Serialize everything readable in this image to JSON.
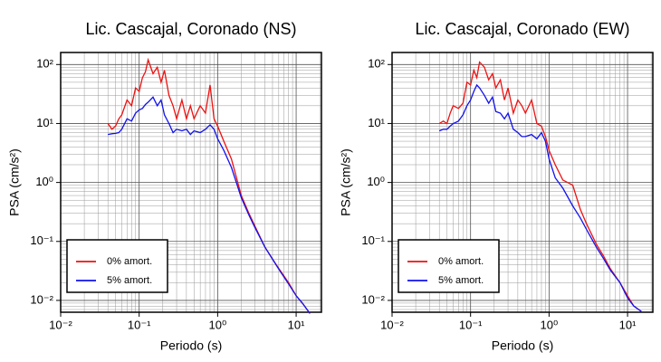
{
  "chart_data": [
    {
      "type": "line",
      "title": "Lic. Cascajal, Coronado (NS)",
      "xlabel": "Periodo (s)",
      "ylabel": "PSA (cm/s²)",
      "xscale": "log",
      "yscale": "log",
      "grid": true,
      "minor_grid": true,
      "legend": "lower left",
      "xlim": [
        0.01,
        21
      ],
      "ylim": [
        0.0063,
        160
      ],
      "xticks": [
        {
          "value": 0.01,
          "label": "10⁻²"
        },
        {
          "value": 0.1,
          "label": "10⁻¹"
        },
        {
          "value": 1,
          "label": "10⁰"
        },
        {
          "value": 10,
          "label": "10¹"
        }
      ],
      "yticks": [
        {
          "value": 0.01,
          "label": "10⁻²"
        },
        {
          "value": 0.1,
          "label": "10⁻¹"
        },
        {
          "value": 1,
          "label": "10⁰"
        },
        {
          "value": 10,
          "label": "10¹"
        },
        {
          "value": 100,
          "label": "10²"
        }
      ],
      "x": [
        0.04,
        0.045,
        0.05,
        0.055,
        0.06,
        0.07,
        0.08,
        0.09,
        0.1,
        0.11,
        0.12,
        0.13,
        0.15,
        0.17,
        0.19,
        0.21,
        0.24,
        0.27,
        0.3,
        0.35,
        0.4,
        0.45,
        0.5,
        0.6,
        0.7,
        0.8,
        0.9,
        1.0,
        1.2,
        1.5,
        2,
        2.5,
        3,
        4,
        5,
        6,
        8,
        10,
        12,
        15
      ],
      "series": [
        {
          "name": "0% amort.",
          "color": "#ee1111",
          "values": [
            10,
            8,
            9,
            12,
            14,
            25,
            20,
            40,
            35,
            60,
            75,
            120,
            70,
            90,
            50,
            80,
            30,
            20,
            12,
            25,
            12,
            20,
            12,
            20,
            15,
            45,
            12,
            9,
            5,
            2.5,
            0.6,
            0.3,
            0.18,
            0.08,
            0.05,
            0.035,
            0.02,
            0.012,
            0.009,
            0.006
          ]
        },
        {
          "name": "5% amort.",
          "color": "#1111ee",
          "values": [
            6.5,
            6.7,
            6.8,
            7,
            8,
            12,
            11,
            15,
            17,
            18,
            21,
            23,
            28,
            20,
            25,
            14,
            10,
            7,
            8,
            7.5,
            8,
            6.5,
            7.5,
            7,
            8,
            9.5,
            8,
            5.5,
            3.5,
            1.8,
            0.55,
            0.28,
            0.17,
            0.08,
            0.05,
            0.034,
            0.019,
            0.012,
            0.009,
            0.006
          ]
        }
      ]
    },
    {
      "type": "line",
      "title": "Lic. Cascajal, Coronado (EW)",
      "xlabel": "Periodo (s)",
      "ylabel": "PSA (cm/s²)",
      "xscale": "log",
      "yscale": "log",
      "grid": true,
      "minor_grid": true,
      "legend": "lower left",
      "xlim": [
        0.01,
        21
      ],
      "ylim": [
        0.0063,
        160
      ],
      "xticks": [
        {
          "value": 0.01,
          "label": "10⁻²"
        },
        {
          "value": 0.1,
          "label": "10⁻¹"
        },
        {
          "value": 1,
          "label": "10⁰"
        },
        {
          "value": 10,
          "label": "10¹"
        }
      ],
      "yticks": [
        {
          "value": 0.01,
          "label": "10⁻²"
        },
        {
          "value": 0.1,
          "label": "10⁻¹"
        },
        {
          "value": 1,
          "label": "10⁰"
        },
        {
          "value": 10,
          "label": "10¹"
        },
        {
          "value": 100,
          "label": "10²"
        }
      ],
      "x": [
        0.04,
        0.045,
        0.05,
        0.055,
        0.06,
        0.07,
        0.08,
        0.09,
        0.1,
        0.11,
        0.12,
        0.13,
        0.15,
        0.17,
        0.19,
        0.21,
        0.24,
        0.27,
        0.3,
        0.35,
        0.4,
        0.45,
        0.5,
        0.6,
        0.7,
        0.8,
        0.9,
        1.0,
        1.2,
        1.5,
        2,
        2.5,
        3,
        4,
        5,
        6,
        8,
        10,
        12,
        15
      ],
      "series": [
        {
          "name": "0% amort.",
          "color": "#ee1111",
          "values": [
            10,
            11,
            10,
            15,
            20,
            18,
            22,
            50,
            45,
            80,
            60,
            110,
            90,
            55,
            70,
            40,
            55,
            25,
            40,
            15,
            25,
            20,
            15,
            25,
            10,
            9,
            6,
            3.5,
            2,
            1.1,
            0.9,
            0.35,
            0.2,
            0.09,
            0.055,
            0.035,
            0.02,
            0.012,
            0.008,
            0.0065
          ]
        },
        {
          "name": "5% amort.",
          "color": "#1111ee",
          "values": [
            7.5,
            8,
            8,
            9,
            10,
            11,
            14,
            20,
            25,
            35,
            45,
            40,
            30,
            22,
            28,
            16,
            15,
            12,
            15,
            8,
            7,
            6,
            6,
            6.5,
            5.5,
            7,
            5,
            2.5,
            1.2,
            0.8,
            0.4,
            0.25,
            0.16,
            0.08,
            0.05,
            0.033,
            0.02,
            0.011,
            0.008,
            0.0065
          ]
        }
      ]
    }
  ]
}
